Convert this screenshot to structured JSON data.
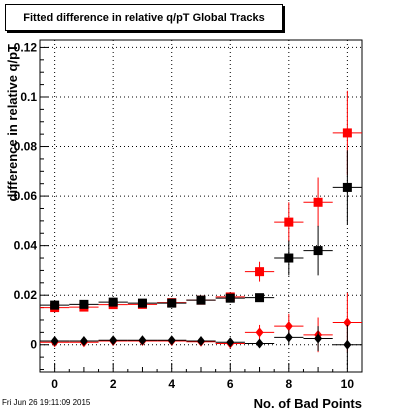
{
  "title": "Fitted difference in relative q/pT  Global Tracks",
  "footer": "Fri Jun 26 19:11:09 2015",
  "colors": {
    "red": "#ff0000",
    "black": "#000000",
    "grid": "#000000"
  },
  "chart_data": {
    "type": "scatter",
    "title": "Fitted difference in relative q/pT  Global Tracks",
    "xlabel": "No. of Bad Points",
    "ylabel": "difference in relative q/pT",
    "xlim": [
      -0.5,
      10.5
    ],
    "ylim": [
      -0.011,
      0.123
    ],
    "xticks": [
      "0",
      "2",
      "4",
      "6",
      "8",
      "10"
    ],
    "yticks": [
      "0",
      "0.02",
      "0.04",
      "0.06",
      "0.08",
      "0.1",
      "0.12"
    ],
    "grid": true,
    "series": [
      {
        "marker": "square",
        "color": "#ff0000",
        "x": [
          0,
          1,
          2,
          3,
          4,
          5,
          6,
          7,
          8,
          9,
          10
        ],
        "y": [
          0.015,
          0.0152,
          0.0162,
          0.0163,
          0.017,
          0.018,
          0.0193,
          0.0295,
          0.0495,
          0.0575,
          0.0855
        ],
        "yerr": [
          0.001,
          0.001,
          0.001,
          0.001,
          0.001,
          0.0012,
          0.0015,
          0.004,
          0.008,
          0.01,
          0.017
        ]
      },
      {
        "marker": "square",
        "color": "#000000",
        "x": [
          0,
          1,
          2,
          3,
          4,
          5,
          6,
          7,
          8,
          9,
          10
        ],
        "y": [
          0.016,
          0.0163,
          0.0172,
          0.0168,
          0.0168,
          0.018,
          0.0188,
          0.019,
          0.035,
          0.038,
          0.0635
        ],
        "yerr": [
          0.001,
          0.001,
          0.001,
          0.001,
          0.001,
          0.001,
          0.0012,
          0.0015,
          0.007,
          0.01,
          0.015
        ]
      },
      {
        "marker": "diamond",
        "color": "#ff0000",
        "x": [
          0,
          1,
          2,
          3,
          4,
          5,
          6,
          7,
          8,
          9,
          10
        ],
        "y": [
          0.001,
          0.001,
          0.0015,
          0.0015,
          0.0015,
          0.0012,
          0.0005,
          0.005,
          0.0075,
          0.004,
          0.009
        ],
        "yerr": [
          0.001,
          0.001,
          0.001,
          0.001,
          0.001,
          0.001,
          0.0015,
          0.003,
          0.005,
          0.007,
          0.012
        ]
      },
      {
        "marker": "diamond",
        "color": "#000000",
        "x": [
          0,
          1,
          2,
          3,
          4,
          5,
          6,
          7,
          8,
          9,
          10
        ],
        "y": [
          0.0015,
          0.0015,
          0.0018,
          0.0018,
          0.0018,
          0.0015,
          0.001,
          0.0005,
          0.003,
          0.0025,
          0.0
        ],
        "yerr": [
          0.001,
          0.001,
          0.001,
          0.001,
          0.001,
          0.001,
          0.001,
          0.0015,
          0.003,
          0.005,
          0.008
        ]
      }
    ]
  }
}
